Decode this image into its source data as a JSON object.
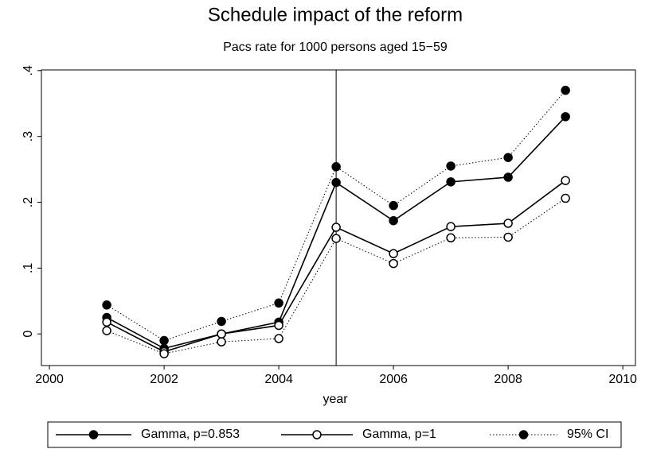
{
  "chart_data": {
    "type": "line",
    "title": "Schedule impact of the reform",
    "subtitle": "Pacs rate for 1000 persons aged 15−59",
    "x_label": "year",
    "x": [
      2001,
      2002,
      2003,
      2004,
      2005,
      2006,
      2007,
      2008,
      2009
    ],
    "series": [
      {
        "name": "Gamma, p=0.853",
        "color": "#000000",
        "marker": "filled",
        "line": "solid",
        "values": [
          0.025,
          -0.022,
          0,
          0.018,
          0.23,
          0.172,
          0.231,
          0.238,
          0.33
        ]
      },
      {
        "name": "Gamma, p=1",
        "color": "#000000",
        "marker": "hollow",
        "line": "solid",
        "values": [
          0.018,
          -0.027,
          0,
          0.013,
          0.162,
          0.122,
          0.163,
          0.168,
          0.233
        ]
      },
      {
        "name": "95% CI",
        "color": "#000000",
        "marker": "filled",
        "line": "dotted",
        "values": [
          0.044,
          -0.01,
          0.019,
          0.047,
          0.254,
          0.195,
          0.255,
          0.268,
          0.37
        ],
        "lower_marker": "hollow",
        "lower": [
          0.005,
          -0.03,
          -0.012,
          -0.007,
          0.145,
          0.107,
          0.146,
          0.147,
          0.206
        ]
      }
    ],
    "xline": 2005,
    "xlim": [
      1999.86,
      2010.22
    ],
    "ylim": [
      -0.048,
      0.401
    ],
    "xticks": [
      2000,
      2002,
      2004,
      2006,
      2008,
      2010
    ],
    "yticks": [
      0,
      {
        "value": 0.1,
        "label": ".1"
      },
      {
        "value": 0.2,
        "label": ".2"
      },
      {
        "value": 0.3,
        "label": ".3"
      },
      {
        "value": 0.4,
        "label": ".4"
      }
    ],
    "grid": false,
    "legend": "bottom"
  }
}
